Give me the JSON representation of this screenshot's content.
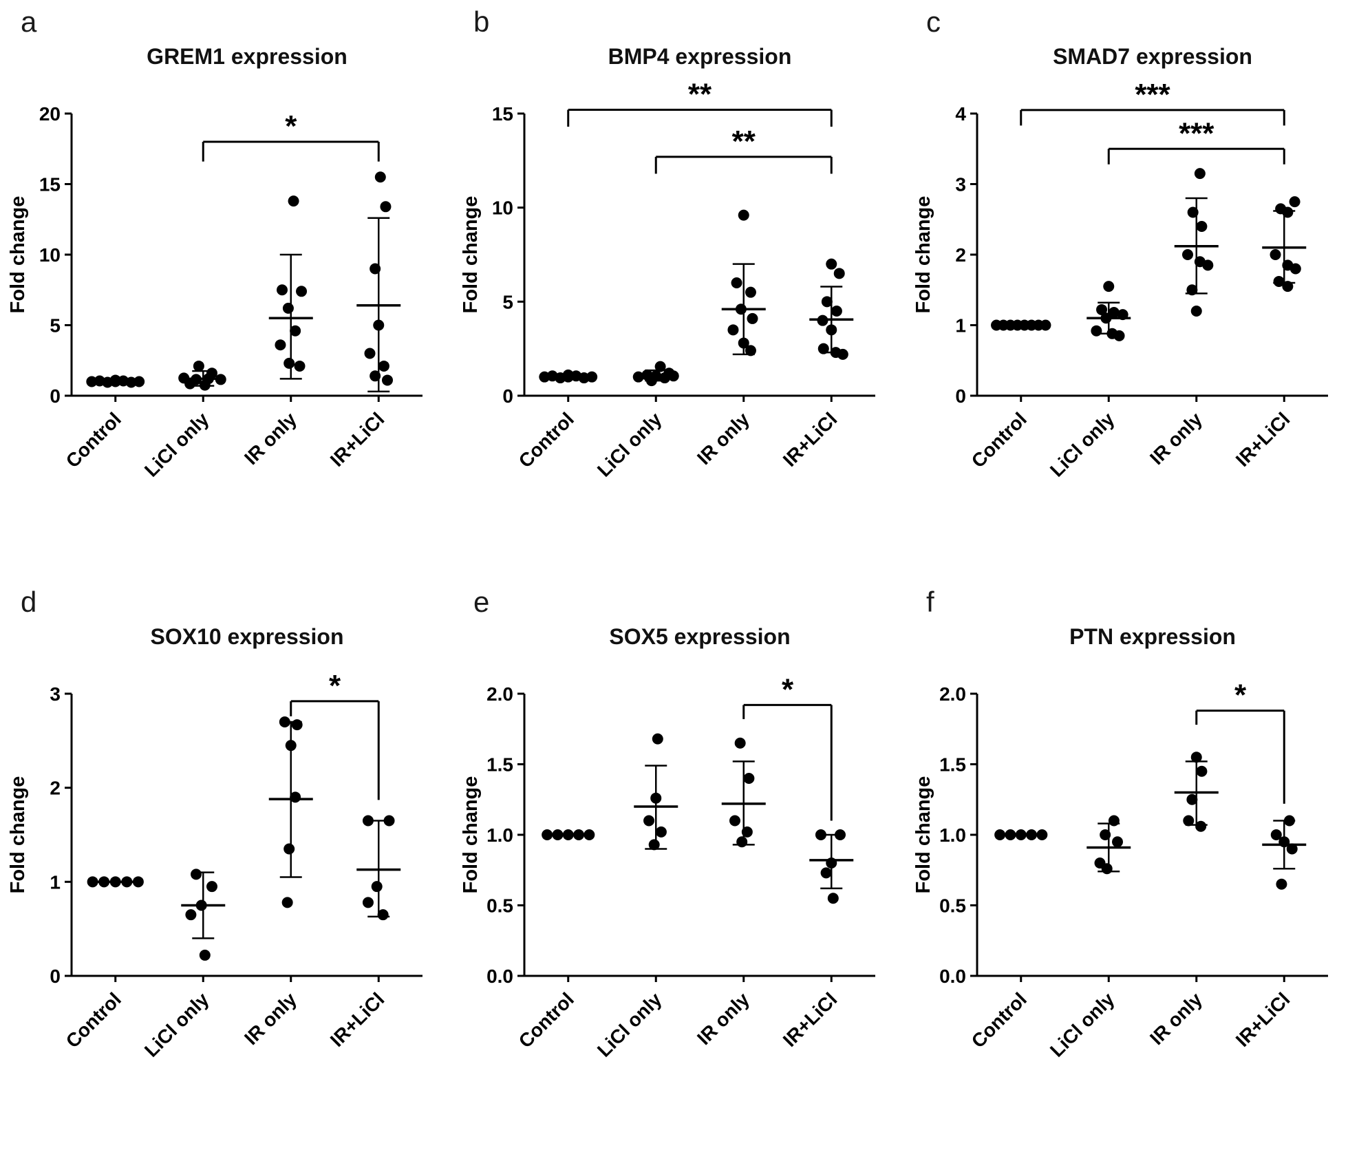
{
  "colors": {
    "foreground": "#000000",
    "background": "#ffffff"
  },
  "chart_data": [
    {
      "type": "scatter",
      "panel_label": "a",
      "title": "GREM1 expression",
      "ylabel": "Fold change",
      "ylim": [
        0,
        20
      ],
      "yticks": [
        {
          "v": 0,
          "t": "0"
        },
        {
          "v": 5,
          "t": "5"
        },
        {
          "v": 10,
          "t": "10"
        },
        {
          "v": 15,
          "t": "15"
        },
        {
          "v": 20,
          "t": "20"
        }
      ],
      "categories": [
        "Control",
        "LiCl only",
        "IR only",
        "IR+LiCl"
      ],
      "groups": [
        {
          "name": "Control",
          "mean": 1.0,
          "lo": 1.0,
          "hi": 1.0,
          "points": [
            [
              -0.27,
              1.0
            ],
            [
              -0.18,
              1.05
            ],
            [
              -0.09,
              0.95
            ],
            [
              0,
              1.0
            ],
            [
              0.09,
              1.05
            ],
            [
              0.18,
              0.95
            ],
            [
              0.27,
              1.0
            ],
            [
              0.0,
              1.1
            ]
          ]
        },
        {
          "name": "LiCl only",
          "mean": 1.2,
          "lo": 0.7,
          "hi": 1.75,
          "points": [
            [
              -0.05,
              2.1
            ],
            [
              0.1,
              1.6
            ],
            [
              -0.22,
              1.25
            ],
            [
              -0.08,
              1.15
            ],
            [
              0.06,
              1.2
            ],
            [
              0.2,
              1.15
            ],
            [
              -0.15,
              0.85
            ],
            [
              0.02,
              0.75
            ]
          ]
        },
        {
          "name": "IR only",
          "mean": 5.5,
          "lo": 1.2,
          "hi": 10.0,
          "points": [
            [
              0.03,
              13.8
            ],
            [
              -0.1,
              7.5
            ],
            [
              0.12,
              7.4
            ],
            [
              -0.03,
              6.2
            ],
            [
              0.05,
              4.6
            ],
            [
              -0.12,
              3.6
            ],
            [
              -0.02,
              2.3
            ],
            [
              0.1,
              2.1
            ]
          ]
        },
        {
          "name": "IR+LiCl",
          "mean": 6.4,
          "lo": 0.3,
          "hi": 12.6,
          "points": [
            [
              0.02,
              15.5
            ],
            [
              0.08,
              13.4
            ],
            [
              -0.04,
              9.0
            ],
            [
              0.0,
              5.0
            ],
            [
              -0.1,
              3.0
            ],
            [
              0.06,
              2.1
            ],
            [
              -0.04,
              1.4
            ],
            [
              0.1,
              1.1
            ]
          ]
        }
      ],
      "brackets": [
        {
          "x1": 1,
          "x2": 3,
          "y": 18,
          "d1": 1.4,
          "d2": 1.4,
          "label": "*"
        }
      ]
    },
    {
      "type": "scatter",
      "panel_label": "b",
      "title": "BMP4 expression",
      "ylabel": "Fold change",
      "ylim": [
        0,
        15
      ],
      "yticks": [
        {
          "v": 0,
          "t": "0"
        },
        {
          "v": 5,
          "t": "5"
        },
        {
          "v": 10,
          "t": "10"
        },
        {
          "v": 15,
          "t": "15"
        }
      ],
      "categories": [
        "Control",
        "LiCl only",
        "IR only",
        "IR+LiCl"
      ],
      "groups": [
        {
          "name": "Control",
          "mean": 1.0,
          "lo": 1.0,
          "hi": 1.0,
          "points": [
            [
              -0.27,
              1.0
            ],
            [
              -0.18,
              1.05
            ],
            [
              -0.09,
              0.95
            ],
            [
              0,
              1.0
            ],
            [
              0.09,
              1.05
            ],
            [
              0.18,
              0.95
            ],
            [
              0.27,
              1.0
            ],
            [
              0.0,
              1.1
            ]
          ]
        },
        {
          "name": "LiCl only",
          "mean": 1.05,
          "lo": 0.8,
          "hi": 1.35,
          "points": [
            [
              -0.2,
              1.0
            ],
            [
              -0.1,
              1.1
            ],
            [
              0.0,
              1.05
            ],
            [
              0.1,
              0.95
            ],
            [
              0.2,
              1.05
            ],
            [
              -0.05,
              0.8
            ],
            [
              0.05,
              1.55
            ],
            [
              0.15,
              1.2
            ]
          ]
        },
        {
          "name": "IR only",
          "mean": 4.6,
          "lo": 2.2,
          "hi": 7.0,
          "points": [
            [
              0.0,
              9.6
            ],
            [
              -0.08,
              6.0
            ],
            [
              0.08,
              5.5
            ],
            [
              -0.03,
              4.6
            ],
            [
              0.1,
              4.1
            ],
            [
              -0.12,
              3.5
            ],
            [
              0.0,
              2.8
            ],
            [
              0.08,
              2.4
            ]
          ]
        },
        {
          "name": "IR+LiCl",
          "mean": 4.05,
          "lo": 2.3,
          "hi": 5.8,
          "points": [
            [
              0.0,
              7.0
            ],
            [
              0.09,
              6.5
            ],
            [
              -0.05,
              5.0
            ],
            [
              0.06,
              4.5
            ],
            [
              -0.1,
              4.0
            ],
            [
              0.0,
              3.5
            ],
            [
              -0.09,
              2.5
            ],
            [
              0.05,
              2.3
            ],
            [
              0.13,
              2.2
            ]
          ]
        }
      ],
      "brackets": [
        {
          "x1": 0,
          "x2": 3,
          "y": 15.2,
          "d1": 0.9,
          "d2": 0.9,
          "label": "**"
        },
        {
          "x1": 1,
          "x2": 3,
          "y": 12.7,
          "d1": 0.9,
          "d2": 0.9,
          "label": "**"
        }
      ]
    },
    {
      "type": "scatter",
      "panel_label": "c",
      "title": "SMAD7 expression",
      "ylabel": "Fold change",
      "ylim": [
        0,
        4
      ],
      "yticks": [
        {
          "v": 0,
          "t": "0"
        },
        {
          "v": 1,
          "t": "1"
        },
        {
          "v": 2,
          "t": "2"
        },
        {
          "v": 3,
          "t": "3"
        },
        {
          "v": 4,
          "t": "4"
        }
      ],
      "categories": [
        "Control",
        "LiCl only",
        "IR only",
        "IR+LiCl"
      ],
      "groups": [
        {
          "name": "Control",
          "mean": 1.0,
          "lo": 1.0,
          "hi": 1.0,
          "points": [
            [
              -0.28,
              1.0
            ],
            [
              -0.2,
              1.0
            ],
            [
              -0.12,
              1.0
            ],
            [
              -0.04,
              1.0
            ],
            [
              0.04,
              1.0
            ],
            [
              0.12,
              1.0
            ],
            [
              0.2,
              1.0
            ],
            [
              0.28,
              1.0
            ]
          ]
        },
        {
          "name": "LiCl only",
          "mean": 1.1,
          "lo": 0.88,
          "hi": 1.32,
          "points": [
            [
              0.0,
              1.55
            ],
            [
              -0.08,
              1.22
            ],
            [
              0.06,
              1.18
            ],
            [
              0.16,
              1.15
            ],
            [
              -0.03,
              1.1
            ],
            [
              -0.14,
              0.92
            ],
            [
              0.04,
              0.88
            ],
            [
              0.12,
              0.85
            ]
          ]
        },
        {
          "name": "IR only",
          "mean": 2.12,
          "lo": 1.45,
          "hi": 2.8,
          "points": [
            [
              0.04,
              3.15
            ],
            [
              -0.04,
              2.6
            ],
            [
              0.06,
              2.4
            ],
            [
              -0.1,
              2.0
            ],
            [
              0.04,
              1.9
            ],
            [
              0.13,
              1.85
            ],
            [
              -0.05,
              1.5
            ],
            [
              0.0,
              1.2
            ]
          ]
        },
        {
          "name": "IR+LiCl",
          "mean": 2.1,
          "lo": 1.6,
          "hi": 2.62,
          "points": [
            [
              0.12,
              2.75
            ],
            [
              -0.04,
              2.65
            ],
            [
              0.04,
              2.6
            ],
            [
              -0.1,
              2.0
            ],
            [
              0.04,
              1.85
            ],
            [
              0.13,
              1.8
            ],
            [
              -0.06,
              1.62
            ],
            [
              0.04,
              1.55
            ]
          ]
        }
      ],
      "brackets": [
        {
          "x1": 0,
          "x2": 3,
          "y": 4.05,
          "d1": 0.22,
          "d2": 0.22,
          "label": "***"
        },
        {
          "x1": 1,
          "x2": 3,
          "y": 3.5,
          "d1": 0.22,
          "d2": 0.22,
          "label": "***"
        }
      ]
    },
    {
      "type": "scatter",
      "panel_label": "d",
      "title": "SOX10 expression",
      "ylabel": "Fold change",
      "ylim": [
        0,
        3
      ],
      "yticks": [
        {
          "v": 0,
          "t": "0"
        },
        {
          "v": 1,
          "t": "1"
        },
        {
          "v": 2,
          "t": "2"
        },
        {
          "v": 3,
          "t": "3"
        }
      ],
      "categories": [
        "Control",
        "LiCl only",
        "IR only",
        "IR+LiCl"
      ],
      "groups": [
        {
          "name": "Control",
          "mean": 1.0,
          "lo": 1.0,
          "hi": 1.0,
          "points": [
            [
              -0.26,
              1.0
            ],
            [
              -0.13,
              1.0
            ],
            [
              0,
              1.0
            ],
            [
              0.13,
              1.0
            ],
            [
              0.26,
              1.0
            ]
          ]
        },
        {
          "name": "LiCl only",
          "mean": 0.75,
          "lo": 0.4,
          "hi": 1.1,
          "points": [
            [
              -0.08,
              1.08
            ],
            [
              0.1,
              0.95
            ],
            [
              -0.02,
              0.75
            ],
            [
              -0.14,
              0.65
            ],
            [
              0.02,
              0.22
            ]
          ]
        },
        {
          "name": "IR only",
          "mean": 1.88,
          "lo": 1.05,
          "hi": 2.7,
          "points": [
            [
              -0.07,
              2.7
            ],
            [
              0.07,
              2.67
            ],
            [
              0.0,
              2.45
            ],
            [
              0.05,
              1.9
            ],
            [
              -0.02,
              1.35
            ],
            [
              -0.04,
              0.78
            ]
          ]
        },
        {
          "name": "IR+LiCl",
          "mean": 1.13,
          "lo": 0.63,
          "hi": 1.65,
          "points": [
            [
              -0.12,
              1.65
            ],
            [
              0.12,
              1.65
            ],
            [
              -0.02,
              0.95
            ],
            [
              -0.12,
              0.78
            ],
            [
              0.05,
              0.65
            ]
          ]
        }
      ],
      "brackets": [
        {
          "x1": 2,
          "x2": 3,
          "y": 2.92,
          "d1": 0.16,
          "d2": 1.05,
          "label": "*"
        }
      ]
    },
    {
      "type": "scatter",
      "panel_label": "e",
      "title": "SOX5 expression",
      "ylabel": "Fold change",
      "ylim": [
        0,
        2
      ],
      "yticks": [
        {
          "v": 0,
          "t": "0.0"
        },
        {
          "v": 0.5,
          "t": "0.5"
        },
        {
          "v": 1,
          "t": "1.0"
        },
        {
          "v": 1.5,
          "t": "1.5"
        },
        {
          "v": 2,
          "t": "2.0"
        }
      ],
      "categories": [
        "Control",
        "LiCl only",
        "IR only",
        "IR+LiCl"
      ],
      "groups": [
        {
          "name": "Control",
          "mean": 1.0,
          "lo": 1.0,
          "hi": 1.0,
          "points": [
            [
              -0.24,
              1.0
            ],
            [
              -0.12,
              1.0
            ],
            [
              0,
              1.0
            ],
            [
              0.12,
              1.0
            ],
            [
              0.24,
              1.0
            ]
          ]
        },
        {
          "name": "LiCl only",
          "mean": 1.2,
          "lo": 0.9,
          "hi": 1.49,
          "points": [
            [
              0.02,
              1.68
            ],
            [
              0.0,
              1.26
            ],
            [
              -0.08,
              1.1
            ],
            [
              0.06,
              1.02
            ],
            [
              -0.02,
              0.93
            ]
          ]
        },
        {
          "name": "IR only",
          "mean": 1.22,
          "lo": 0.93,
          "hi": 1.52,
          "points": [
            [
              -0.04,
              1.65
            ],
            [
              0.06,
              1.4
            ],
            [
              -0.1,
              1.1
            ],
            [
              0.04,
              1.02
            ],
            [
              -0.02,
              0.95
            ]
          ]
        },
        {
          "name": "IR+LiCl",
          "mean": 0.82,
          "lo": 0.62,
          "hi": 1.0,
          "points": [
            [
              -0.12,
              1.0
            ],
            [
              0.1,
              1.0
            ],
            [
              0.0,
              0.8
            ],
            [
              -0.06,
              0.73
            ],
            [
              0.02,
              0.55
            ]
          ]
        }
      ],
      "brackets": [
        {
          "x1": 2,
          "x2": 3,
          "y": 1.92,
          "d1": 0.1,
          "d2": 0.82,
          "label": "*"
        }
      ]
    },
    {
      "type": "scatter",
      "panel_label": "f",
      "title": "PTN expression",
      "ylabel": "Fold change",
      "ylim": [
        0,
        2
      ],
      "yticks": [
        {
          "v": 0,
          "t": "0.0"
        },
        {
          "v": 0.5,
          "t": "0.5"
        },
        {
          "v": 1,
          "t": "1.0"
        },
        {
          "v": 1.5,
          "t": "1.5"
        },
        {
          "v": 2,
          "t": "2.0"
        }
      ],
      "categories": [
        "Control",
        "LiCl only",
        "IR only",
        "IR+LiCl"
      ],
      "groups": [
        {
          "name": "Control",
          "mean": 1.0,
          "lo": 1.0,
          "hi": 1.0,
          "points": [
            [
              -0.24,
              1.0
            ],
            [
              -0.12,
              1.0
            ],
            [
              0,
              1.0
            ],
            [
              0.12,
              1.0
            ],
            [
              0.24,
              1.0
            ]
          ]
        },
        {
          "name": "LiCl only",
          "mean": 0.91,
          "lo": 0.74,
          "hi": 1.08,
          "points": [
            [
              0.06,
              1.1
            ],
            [
              -0.04,
              1.0
            ],
            [
              0.1,
              0.95
            ],
            [
              -0.1,
              0.8
            ],
            [
              -0.02,
              0.76
            ]
          ]
        },
        {
          "name": "IR only",
          "mean": 1.3,
          "lo": 1.07,
          "hi": 1.52,
          "points": [
            [
              0.0,
              1.55
            ],
            [
              0.06,
              1.45
            ],
            [
              -0.05,
              1.25
            ],
            [
              -0.09,
              1.1
            ],
            [
              0.05,
              1.06
            ]
          ]
        },
        {
          "name": "IR+LiCl",
          "mean": 0.93,
          "lo": 0.76,
          "hi": 1.1,
          "points": [
            [
              0.06,
              1.1
            ],
            [
              -0.09,
              1.0
            ],
            [
              0.0,
              0.95
            ],
            [
              0.09,
              0.9
            ],
            [
              -0.03,
              0.65
            ]
          ]
        }
      ],
      "brackets": [
        {
          "x1": 2,
          "x2": 3,
          "y": 1.88,
          "d1": 0.1,
          "d2": 0.66,
          "label": "*"
        }
      ]
    }
  ]
}
